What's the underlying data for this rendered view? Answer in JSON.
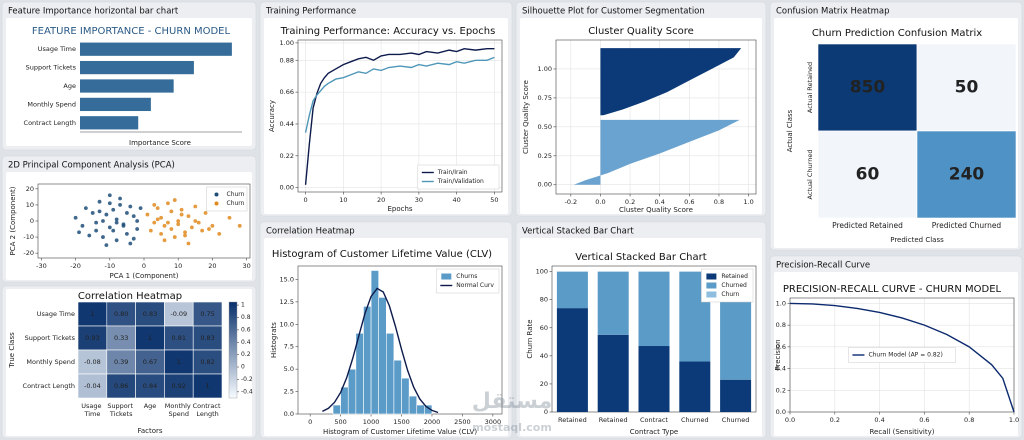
{
  "chart_data": [
    {
      "panel_title": "Feature Importance horizontal bar chart",
      "type": "bar",
      "orientation": "horizontal",
      "title": "FEATURE IMPORTANCE - CHURN MODEL",
      "x_label": "Importance Score",
      "categories": [
        "Usage Time",
        "Support Tickets",
        "Age",
        "Monthly Spend",
        "Contract Length"
      ],
      "values": [
        0.3,
        0.225,
        0.185,
        0.14,
        0.115
      ],
      "color": "#356c99",
      "xlim": [
        0,
        0.32
      ]
    },
    {
      "panel_title": "2D Principal Component Analysis (PCA)",
      "type": "scatter",
      "x_label": "PCA 1 (Component)",
      "y_label": "PCA 2 (Component)",
      "xlim": [
        -31,
        31
      ],
      "ylim": [
        -23,
        23
      ],
      "xticks": [
        -30,
        -20,
        -10,
        0,
        10,
        20,
        30
      ],
      "yticks": [
        -20,
        -10,
        0,
        10,
        20
      ],
      "legend": "upper right",
      "series": [
        {
          "name": "Churn",
          "color": "#1f4e79",
          "x": [
            -20,
            -18,
            -17,
            -15,
            -14,
            -13,
            -12,
            -12,
            -11,
            -10,
            -10,
            -9,
            -8,
            -8,
            -7,
            -6,
            -5,
            -5,
            -4,
            -3,
            -2,
            -1,
            -16,
            -14,
            -11,
            -9,
            -7,
            -6,
            -4,
            -2,
            -19,
            -13,
            -10,
            -8,
            -3
          ],
          "values": [
            2,
            -3,
            8,
            5,
            -6,
            12,
            0,
            -10,
            4,
            16,
            -4,
            7,
            -12,
            1,
            10,
            -2,
            5,
            -8,
            -14,
            3,
            -5,
            8,
            -9,
            -1,
            -15,
            -6,
            14,
            -3,
            9,
            0,
            -7,
            6,
            11,
            -1,
            -11
          ]
        },
        {
          "name": "Churn",
          "color": "#e08a1e",
          "x": [
            1,
            2,
            3,
            4,
            5,
            5,
            6,
            7,
            8,
            8,
            9,
            10,
            10,
            11,
            12,
            13,
            14,
            15,
            16,
            17,
            18,
            20,
            22,
            25,
            3,
            6,
            9,
            12,
            15,
            7,
            11,
            13,
            19,
            4,
            28
          ],
          "values": [
            4,
            -6,
            -1,
            8,
            -8,
            2,
            -3,
            11,
            -5,
            6,
            -10,
            0,
            -2,
            7,
            -7,
            3,
            -4,
            9,
            -1,
            -6,
            5,
            -3,
            -8,
            2,
            10,
            -12,
            13,
            -9,
            0,
            -1,
            4,
            -14,
            -5,
            1,
            -3
          ]
        }
      ]
    },
    {
      "panel_title": "Correlation Heatmap",
      "type": "heatmap",
      "title": "Correlation Heatmap",
      "x_label": "Factors",
      "y_label": "True Class",
      "rows": [
        "Usage Time",
        "Support Tickets",
        "Monthly Spend",
        "Contract Length"
      ],
      "columns": [
        "Usage Time",
        "Support Tickets",
        "Age",
        "Monthly Spend",
        "Contract Length"
      ],
      "values": [
        [
          1,
          0.8,
          0.83,
          -0.09,
          0.75
        ],
        [
          0.93,
          0.33,
          1,
          0.81,
          0.83
        ],
        [
          -0.08,
          0.39,
          0.67,
          1,
          0.82
        ],
        [
          -0.04,
          0.86,
          0.84,
          0.92,
          1
        ]
      ],
      "value_labels": [
        [
          "1",
          "0.80",
          "0.83",
          "-0.09",
          "0.75"
        ],
        [
          "0.93",
          "0.33",
          "1",
          "0.81",
          "0.83"
        ],
        [
          "-0.08",
          "0.39",
          "0.67",
          "1",
          "0.82"
        ],
        [
          "-0.04",
          "0.86",
          "0.84",
          "0.92",
          "1"
        ]
      ],
      "colormap": [
        "#f7fbff",
        "#08306b"
      ],
      "zlim": [
        -0.5,
        1.05
      ],
      "zticks": [
        1,
        0.8,
        0.6,
        0.4,
        0.2,
        0,
        -0.2,
        -0.4
      ]
    },
    {
      "panel_title": "Training Performance",
      "type": "line",
      "title": "Training Performance: Accuracy vs. Epochs",
      "x_label": "Epochs",
      "y_label": "Accuracy",
      "x": [
        0,
        1,
        2,
        3,
        4,
        5,
        6,
        8,
        10,
        12,
        14,
        16,
        18,
        20,
        22,
        25,
        28,
        30,
        32,
        35,
        38,
        40,
        42,
        45,
        48,
        50
      ],
      "xlim": [
        -2,
        52
      ],
      "ylim": [
        -0.03,
        1.02
      ],
      "xticks": [
        0,
        10,
        20,
        30,
        40,
        50
      ],
      "yticks": [
        {
          "value": 0,
          "label": "0.00"
        },
        0.22,
        0.44,
        0.66,
        0.88,
        {
          "value": 1,
          "label": "1.00"
        }
      ],
      "grid": true,
      "legend": "lower right",
      "series": [
        {
          "name": "Train/Irain",
          "color": "#0d1b4c",
          "values": [
            0.02,
            0.3,
            0.55,
            0.65,
            0.72,
            0.76,
            0.79,
            0.82,
            0.85,
            0.87,
            0.89,
            0.9,
            0.88,
            0.91,
            0.92,
            0.92,
            0.93,
            0.92,
            0.94,
            0.93,
            0.95,
            0.94,
            0.96,
            0.95,
            0.96,
            0.96
          ]
        },
        {
          "name": "Train/Validation",
          "color": "#4f97b8",
          "values": [
            0.38,
            0.5,
            0.6,
            0.64,
            0.67,
            0.7,
            0.72,
            0.75,
            0.76,
            0.78,
            0.8,
            0.79,
            0.82,
            0.81,
            0.83,
            0.84,
            0.83,
            0.85,
            0.84,
            0.86,
            0.85,
            0.87,
            0.86,
            0.88,
            0.88,
            0.9
          ]
        }
      ]
    },
    {
      "panel_title": "Correlation Heatmap",
      "type": "histogram",
      "title": "Histogram of Customer Lifetime Value (CLV)",
      "x_label": "Histogram of Customer Lifetime Value (CLV)",
      "y_label": "Histograts",
      "bins": [
        375,
        500,
        625,
        750,
        875,
        1000,
        1125,
        1250,
        1375,
        1500,
        1625,
        1750,
        1875,
        2000
      ],
      "xlim": [
        -200,
        3150
      ],
      "ylim": [
        0,
        16.5
      ],
      "xticks": [
        0,
        500,
        1000,
        1500,
        2000,
        2500,
        3000
      ],
      "yticks": [
        {
          "value": 0,
          "label": "0.0"
        },
        2.5,
        {
          "value": 5,
          "label": "5.0"
        },
        7.5,
        {
          "value": 10,
          "label": "10.0"
        },
        12.5,
        {
          "value": 15,
          "label": "15.0"
        }
      ],
      "legend": "upper right",
      "series": [
        {
          "name": "Churns",
          "type": "histogram",
          "color": "#5b9bc8",
          "values": [
            1,
            3,
            5,
            9,
            12,
            16,
            13,
            9,
            6,
            4,
            2,
            1,
            1
          ]
        },
        {
          "name": "Normal Curv",
          "type": "line",
          "color": "#0d1b4c",
          "x": [
            200,
            300,
            400,
            500,
            600,
            700,
            800,
            900,
            1000,
            1100,
            1200,
            1300,
            1400,
            1500,
            1600,
            1700,
            1800,
            1900,
            2000,
            2100
          ],
          "values": [
            0.29,
            0.64,
            1.3,
            2.4,
            4.05,
            6.23,
            8.75,
            11.21,
            13.1,
            14.0,
            13.6,
            12.07,
            9.77,
            7.21,
            4.86,
            2.99,
            1.68,
            0.86,
            0.4,
            0.17
          ]
        }
      ]
    },
    {
      "panel_title": "Silhouette Plot for Customer Segmentation",
      "type": "area",
      "title": "Cluster Quality Score",
      "x_label": "Cluster Quality Score",
      "y_label": "Cluster Quality Score",
      "xlim": [
        -0.3,
        1.05
      ],
      "ylim": [
        -0.08,
        1.25
      ],
      "xticks": [
        -0.2,
        {
          "value": 0,
          "label": "0.0"
        },
        0.2,
        0.4,
        0.6,
        0.8,
        {
          "value": 1,
          "label": "1.0"
        }
      ],
      "yticks": [
        {
          "value": 0,
          "label": "0.00"
        },
        0.25,
        {
          "value": 0.5,
          "label": "0.50"
        },
        0.75,
        {
          "value": 1,
          "label": "1.00"
        }
      ],
      "grid": true,
      "series": [
        {
          "color": "#0c3a78",
          "x": [
            0.95,
            0.9,
            0.75,
            0.6,
            0.45,
            0.3,
            0.15,
            0.02
          ],
          "values": [
            1.18,
            1.1,
            1.0,
            0.9,
            0.8,
            0.72,
            0.65,
            0.6
          ]
        },
        {
          "color": "#6aa3cf",
          "x": [
            0.94,
            0.8,
            0.6,
            0.4,
            0.2,
            0.05,
            -0.1,
            -0.18
          ],
          "values": [
            0.56,
            0.47,
            0.37,
            0.27,
            0.18,
            0.1,
            0.04,
            0.0
          ]
        }
      ]
    },
    {
      "panel_title": "Vertical Stacked Bar Chart",
      "type": "stacked_bar",
      "title": "Vertical Stacked Bar Chart",
      "x_label": "Contract Type",
      "y_label": "Churn Rate",
      "categories": [
        "Retained",
        "Retained",
        "Contract",
        "Churned",
        "Churned"
      ],
      "ylim": [
        0,
        104
      ],
      "yticks": [
        0,
        20,
        40,
        60,
        80,
        100
      ],
      "legend": "upper right",
      "series": [
        {
          "name": "Retained",
          "color": "#0c3a78",
          "values": [
            74,
            55,
            47,
            36,
            23
          ]
        },
        {
          "name": "Churned",
          "color": "#5b9bc8",
          "values": [
            26,
            45,
            53,
            64,
            56
          ]
        },
        {
          "name": "Churn",
          "color": "#8fbde0",
          "values": [
            0,
            0,
            0,
            0,
            0
          ]
        }
      ]
    },
    {
      "panel_title": "Confusion Matrix Heatmap",
      "type": "heatmap",
      "title": "Churn Prediction Confusion Matrix",
      "x_label": "Predicted Class",
      "y_label": "Actual Class",
      "rows": [
        "Actual Retained",
        "Actual Churned"
      ],
      "columns": [
        "Predicted Retained",
        "Predicted Churned"
      ],
      "values": [
        [
          850,
          50
        ],
        [
          60,
          240
        ]
      ],
      "cell_colors": [
        [
          "#0b3a75",
          "#f2f6fb"
        ],
        [
          "#f2f6fb",
          "#4f92c6"
        ]
      ]
    },
    {
      "panel_title": "Precision-Recall Curve",
      "type": "line",
      "title": "PRECISION-RECALL CURVE - CHURN MODEL",
      "x_label": "Recall (Sensitivity)",
      "y_label": "Precision",
      "x": [
        0,
        0.1,
        0.2,
        0.3,
        0.4,
        0.5,
        0.6,
        0.7,
        0.8,
        0.9,
        0.95,
        1
      ],
      "xlim": [
        0,
        1
      ],
      "ylim": [
        0,
        1.05
      ],
      "xticks": [
        {
          "value": 0,
          "label": "0.0"
        },
        0.2,
        0.4,
        0.6,
        0.8,
        {
          "value": 1,
          "label": "1.0"
        }
      ],
      "yticks": [
        {
          "value": 0,
          "label": "0.0"
        },
        0.2,
        0.4,
        0.6,
        0.8,
        {
          "value": 1,
          "label": "1.0"
        }
      ],
      "grid": true,
      "legend": "center",
      "series": [
        {
          "name": "Churn Model (AP = 0.82)",
          "color": "#0c2a6e",
          "values": [
            1,
            0.995,
            0.98,
            0.954,
            0.917,
            0.866,
            0.8,
            0.714,
            0.6,
            0.436,
            0.31,
            0
          ]
        }
      ]
    }
  ],
  "watermark": {
    "logo": "مستقل",
    "site": "mostaql.com"
  }
}
